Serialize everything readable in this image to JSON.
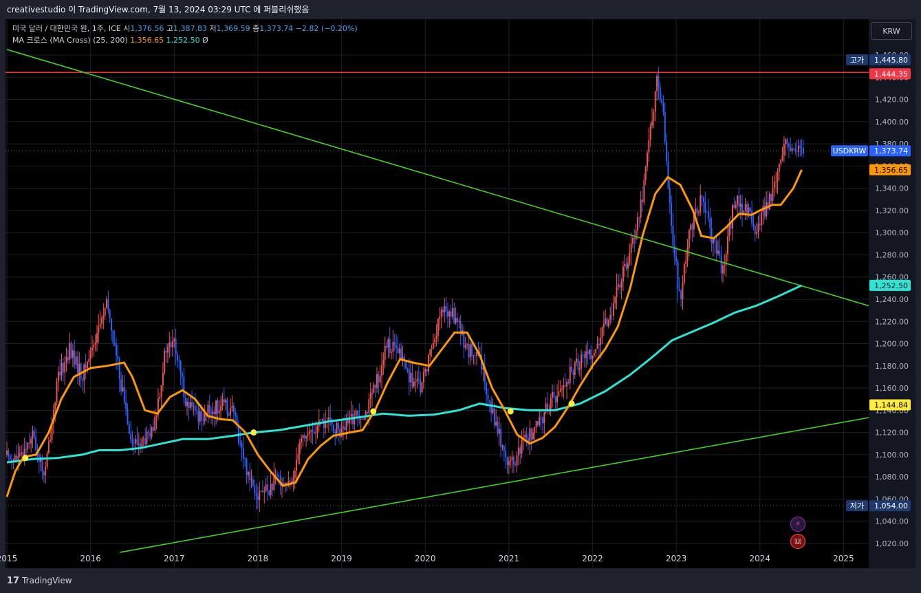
{
  "topbar": {
    "text": "creativestudio 이 TradingView.com, 7월 13, 2024 03:29 UTC 에 퍼블리쉬했음"
  },
  "legend": {
    "line1": {
      "symbol": "미국 달러 / 대한민국 원, 1주, ICE",
      "o_label": "시",
      "o": "1,376.56",
      "h_label": "고",
      "h": "1,387.83",
      "l_label": "저",
      "l": "1,369.59",
      "c_label": "종",
      "c": "1,373.74",
      "chg": "−2.82 (−0.20%)"
    },
    "line2": {
      "name": "MA 크로스 (MA Cross) (25, 200)",
      "fast": "1,356.65",
      "slow": "1,252.50",
      "extra": "Ø"
    }
  },
  "currency_button": "KRW",
  "price_tags": {
    "high_label": "고가",
    "high": "1,445.80",
    "red_line": "1,444.35",
    "symbol": "USDKRW",
    "last": "1,373.74",
    "ma_fast": "1,356.65",
    "ma_slow": "1,252.50",
    "yellow": "1,144.84",
    "low_label": "저가",
    "low": "1,054.00"
  },
  "colors": {
    "background": "#000000",
    "up": "#ef5350",
    "down": "#2962ff",
    "ma_fast": "#ff9800",
    "ma_slow": "#26e7d8",
    "trendline": "#43d024",
    "redline": "#ff2b2b",
    "cross": "#ffeb3b"
  },
  "bottombar": {
    "logo": "17",
    "text": "TradingView"
  },
  "chart_data": {
    "type": "candlestick",
    "symbol": "USDKRW",
    "interval": "1주",
    "x_ticks": [
      "2015",
      "2016",
      "2017",
      "2018",
      "2019",
      "2020",
      "2021",
      "2022",
      "2023",
      "2024",
      "2025"
    ],
    "y_ticks": [
      1020,
      1040,
      1060,
      1080,
      1100,
      1120,
      1140,
      1160,
      1180,
      1200,
      1220,
      1240,
      1260,
      1280,
      1300,
      1320,
      1340,
      1360,
      1380,
      1400,
      1420,
      1440,
      1460
    ],
    "ylim": [
      1012,
      1470
    ],
    "xlim": [
      2015.0,
      2025.35
    ],
    "price_path": [
      [
        2015.0,
        1100
      ],
      [
        2015.15,
        1095
      ],
      [
        2015.3,
        1120
      ],
      [
        2015.45,
        1080
      ],
      [
        2015.6,
        1165
      ],
      [
        2015.75,
        1195
      ],
      [
        2015.9,
        1170
      ],
      [
        2016.1,
        1215
      ],
      [
        2016.2,
        1235
      ],
      [
        2016.35,
        1170
      ],
      [
        2016.5,
        1110
      ],
      [
        2016.6,
        1110
      ],
      [
        2016.75,
        1120
      ],
      [
        2016.9,
        1195
      ],
      [
        2017.0,
        1200
      ],
      [
        2017.15,
        1145
      ],
      [
        2017.3,
        1135
      ],
      [
        2017.45,
        1140
      ],
      [
        2017.55,
        1145
      ],
      [
        2017.7,
        1140
      ],
      [
        2017.85,
        1090
      ],
      [
        2018.0,
        1065
      ],
      [
        2018.15,
        1070
      ],
      [
        2018.25,
        1080
      ],
      [
        2018.4,
        1070
      ],
      [
        2018.5,
        1115
      ],
      [
        2018.65,
        1120
      ],
      [
        2018.8,
        1130
      ],
      [
        2019.0,
        1120
      ],
      [
        2019.15,
        1135
      ],
      [
        2019.3,
        1140
      ],
      [
        2019.4,
        1160
      ],
      [
        2019.55,
        1200
      ],
      [
        2019.7,
        1190
      ],
      [
        2019.85,
        1165
      ],
      [
        2019.95,
        1160
      ],
      [
        2020.05,
        1190
      ],
      [
        2020.2,
        1230
      ],
      [
        2020.35,
        1225
      ],
      [
        2020.5,
        1195
      ],
      [
        2020.65,
        1185
      ],
      [
        2020.8,
        1140
      ],
      [
        2020.95,
        1100
      ],
      [
        2021.05,
        1090
      ],
      [
        2021.2,
        1115
      ],
      [
        2021.35,
        1125
      ],
      [
        2021.5,
        1150
      ],
      [
        2021.6,
        1155
      ],
      [
        2021.75,
        1175
      ],
      [
        2021.9,
        1190
      ],
      [
        2022.05,
        1195
      ],
      [
        2022.2,
        1225
      ],
      [
        2022.35,
        1260
      ],
      [
        2022.5,
        1300
      ],
      [
        2022.6,
        1335
      ],
      [
        2022.7,
        1400
      ],
      [
        2022.78,
        1440
      ],
      [
        2022.85,
        1400
      ],
      [
        2022.95,
        1300
      ],
      [
        2023.05,
        1235
      ],
      [
        2023.15,
        1300
      ],
      [
        2023.3,
        1330
      ],
      [
        2023.45,
        1290
      ],
      [
        2023.55,
        1265
      ],
      [
        2023.7,
        1330
      ],
      [
        2023.85,
        1320
      ],
      [
        2023.95,
        1300
      ],
      [
        2024.05,
        1320
      ],
      [
        2024.2,
        1345
      ],
      [
        2024.32,
        1385
      ],
      [
        2024.42,
        1370
      ],
      [
        2024.5,
        1375
      ]
    ],
    "ma_fast": [
      [
        2015.0,
        1062
      ],
      [
        2015.1,
        1085
      ],
      [
        2015.2,
        1098
      ],
      [
        2015.35,
        1100
      ],
      [
        2015.5,
        1120
      ],
      [
        2015.65,
        1150
      ],
      [
        2015.8,
        1170
      ],
      [
        2016.0,
        1178
      ],
      [
        2016.2,
        1180
      ],
      [
        2016.4,
        1183
      ],
      [
        2016.5,
        1170
      ],
      [
        2016.65,
        1140
      ],
      [
        2016.8,
        1137
      ],
      [
        2016.95,
        1152
      ],
      [
        2017.1,
        1158
      ],
      [
        2017.25,
        1150
      ],
      [
        2017.4,
        1135
      ],
      [
        2017.55,
        1132
      ],
      [
        2017.7,
        1131
      ],
      [
        2017.85,
        1120
      ],
      [
        2018.0,
        1100
      ],
      [
        2018.15,
        1085
      ],
      [
        2018.3,
        1072
      ],
      [
        2018.45,
        1075
      ],
      [
        2018.6,
        1096
      ],
      [
        2018.75,
        1108
      ],
      [
        2018.9,
        1117
      ],
      [
        2019.1,
        1120
      ],
      [
        2019.25,
        1122
      ],
      [
        2019.4,
        1140
      ],
      [
        2019.55,
        1165
      ],
      [
        2019.7,
        1186
      ],
      [
        2019.85,
        1183
      ],
      [
        2020.05,
        1180
      ],
      [
        2020.2,
        1195
      ],
      [
        2020.35,
        1210
      ],
      [
        2020.5,
        1210
      ],
      [
        2020.65,
        1190
      ],
      [
        2020.8,
        1160
      ],
      [
        2020.95,
        1140
      ],
      [
        2021.1,
        1118
      ],
      [
        2021.25,
        1110
      ],
      [
        2021.4,
        1115
      ],
      [
        2021.55,
        1125
      ],
      [
        2021.7,
        1142
      ],
      [
        2021.85,
        1162
      ],
      [
        2022.0,
        1180
      ],
      [
        2022.15,
        1195
      ],
      [
        2022.3,
        1215
      ],
      [
        2022.45,
        1250
      ],
      [
        2022.6,
        1298
      ],
      [
        2022.75,
        1335
      ],
      [
        2022.9,
        1350
      ],
      [
        2023.05,
        1343
      ],
      [
        2023.2,
        1320
      ],
      [
        2023.3,
        1297
      ],
      [
        2023.45,
        1295
      ],
      [
        2023.6,
        1305
      ],
      [
        2023.75,
        1317
      ],
      [
        2023.9,
        1316
      ],
      [
        2024.0,
        1320
      ],
      [
        2024.15,
        1325
      ],
      [
        2024.25,
        1325
      ],
      [
        2024.4,
        1340
      ],
      [
        2024.5,
        1356.65
      ]
    ],
    "ma_slow": [
      [
        2015.0,
        1093
      ],
      [
        2015.3,
        1096
      ],
      [
        2015.6,
        1097
      ],
      [
        2015.9,
        1100
      ],
      [
        2016.1,
        1104
      ],
      [
        2016.35,
        1104
      ],
      [
        2016.6,
        1106
      ],
      [
        2016.85,
        1110
      ],
      [
        2017.1,
        1114
      ],
      [
        2017.4,
        1114
      ],
      [
        2017.7,
        1117
      ],
      [
        2017.95,
        1120
      ],
      [
        2018.25,
        1122
      ],
      [
        2018.55,
        1126
      ],
      [
        2018.85,
        1130
      ],
      [
        2019.15,
        1133
      ],
      [
        2019.5,
        1137
      ],
      [
        2019.8,
        1135
      ],
      [
        2020.1,
        1136
      ],
      [
        2020.4,
        1140
      ],
      [
        2020.65,
        1146
      ],
      [
        2020.95,
        1142
      ],
      [
        2021.25,
        1140
      ],
      [
        2021.55,
        1140
      ],
      [
        2021.85,
        1146
      ],
      [
        2022.15,
        1157
      ],
      [
        2022.45,
        1172
      ],
      [
        2022.7,
        1187
      ],
      [
        2022.95,
        1203
      ],
      [
        2023.2,
        1211
      ],
      [
        2023.45,
        1219
      ],
      [
        2023.7,
        1228
      ],
      [
        2023.95,
        1234
      ],
      [
        2024.2,
        1242
      ],
      [
        2024.5,
        1252.5
      ]
    ],
    "cross_points": [
      [
        2015.22,
        1097
      ],
      [
        2017.95,
        1120
      ],
      [
        2019.38,
        1139
      ],
      [
        2021.02,
        1139
      ],
      [
        2021.75,
        1146
      ]
    ],
    "trendlines": [
      {
        "from": [
          2015.0,
          1465
        ],
        "to": [
          2025.35,
          1233
        ]
      },
      {
        "from": [
          2016.35,
          1012
        ],
        "to": [
          2025.35,
          1134
        ]
      }
    ],
    "horizontal_lines": [
      {
        "value": 1444.35,
        "style": "solid-red"
      },
      {
        "value": 1373.74,
        "style": "dotted"
      },
      {
        "value": 1054.0,
        "style": "dotted"
      }
    ]
  }
}
